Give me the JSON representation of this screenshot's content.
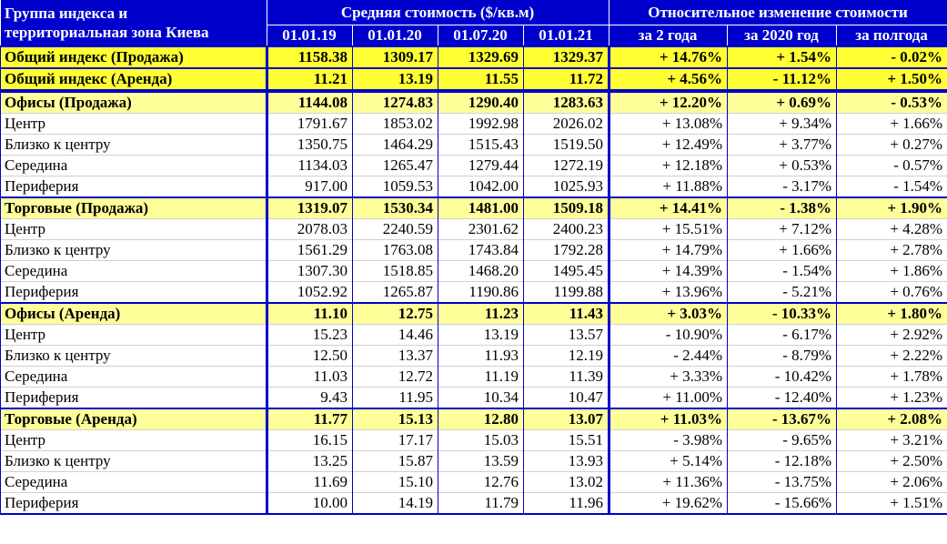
{
  "header": {
    "group_label_line1": "Группа индекса и",
    "group_label_line2": "территориальная зона Киева",
    "avg_cost_label": "Средняя стоимость ($/кв.м)",
    "rel_change_label": "Относительное изменение стоимости",
    "dates": [
      "01.01.19",
      "01.01.20",
      "01.07.20",
      "01.01.21"
    ],
    "periods": [
      "за 2 года",
      "за 2020 год",
      "за полгода"
    ]
  },
  "rows": [
    {
      "type": "main",
      "label": "Общий индекс (Продажа)",
      "v": [
        "1158.38",
        "1309.17",
        "1329.69",
        "1329.37"
      ],
      "c": [
        "+ 14.76%",
        "+ 1.54%",
        "- 0.02%"
      ]
    },
    {
      "type": "main",
      "label": "Общий индекс (Аренда)",
      "v": [
        "11.21",
        "13.19",
        "11.55",
        "11.72"
      ],
      "c": [
        "+ 4.56%",
        "- 11.12%",
        "+ 1.50%"
      ]
    },
    {
      "type": "sect",
      "label": "Офисы (Продажа)",
      "v": [
        "1144.08",
        "1274.83",
        "1290.40",
        "1283.63"
      ],
      "c": [
        "+ 12.20%",
        "+ 0.69%",
        "- 0.53%"
      ]
    },
    {
      "type": "data",
      "label": "Центр",
      "v": [
        "1791.67",
        "1853.02",
        "1992.98",
        "2026.02"
      ],
      "c": [
        "+ 13.08%",
        "+ 9.34%",
        "+ 1.66%"
      ]
    },
    {
      "type": "data",
      "label": "Близко к центру",
      "v": [
        "1350.75",
        "1464.29",
        "1515.43",
        "1519.50"
      ],
      "c": [
        "+ 12.49%",
        "+ 3.77%",
        "+ 0.27%"
      ]
    },
    {
      "type": "data",
      "label": "Середина",
      "v": [
        "1134.03",
        "1265.47",
        "1279.44",
        "1272.19"
      ],
      "c": [
        "+ 12.18%",
        "+ 0.53%",
        "- 0.57%"
      ]
    },
    {
      "type": "data",
      "label": "Периферия",
      "v": [
        "917.00",
        "1059.53",
        "1042.00",
        "1025.93"
      ],
      "c": [
        "+ 11.88%",
        "- 3.17%",
        "- 1.54%"
      ]
    },
    {
      "type": "sect",
      "label": "Торговые (Продажа)",
      "v": [
        "1319.07",
        "1530.34",
        "1481.00",
        "1509.18"
      ],
      "c": [
        "+ 14.41%",
        "- 1.38%",
        "+ 1.90%"
      ]
    },
    {
      "type": "data",
      "label": "Центр",
      "v": [
        "2078.03",
        "2240.59",
        "2301.62",
        "2400.23"
      ],
      "c": [
        "+ 15.51%",
        "+ 7.12%",
        "+ 4.28%"
      ]
    },
    {
      "type": "data",
      "label": "Близко к центру",
      "v": [
        "1561.29",
        "1763.08",
        "1743.84",
        "1792.28"
      ],
      "c": [
        "+ 14.79%",
        "+ 1.66%",
        "+ 2.78%"
      ]
    },
    {
      "type": "data",
      "label": "Середина",
      "v": [
        "1307.30",
        "1518.85",
        "1468.20",
        "1495.45"
      ],
      "c": [
        "+ 14.39%",
        "- 1.54%",
        "+ 1.86%"
      ]
    },
    {
      "type": "data",
      "label": "Периферия",
      "v": [
        "1052.92",
        "1265.87",
        "1190.86",
        "1199.88"
      ],
      "c": [
        "+ 13.96%",
        "- 5.21%",
        "+ 0.76%"
      ]
    },
    {
      "type": "sect",
      "label": "Офисы (Аренда)",
      "v": [
        "11.10",
        "12.75",
        "11.23",
        "11.43"
      ],
      "c": [
        "+ 3.03%",
        "- 10.33%",
        "+ 1.80%"
      ]
    },
    {
      "type": "data",
      "label": "Центр",
      "v": [
        "15.23",
        "14.46",
        "13.19",
        "13.57"
      ],
      "c": [
        "- 10.90%",
        "- 6.17%",
        "+ 2.92%"
      ]
    },
    {
      "type": "data",
      "label": "Близко к центру",
      "v": [
        "12.50",
        "13.37",
        "11.93",
        "12.19"
      ],
      "c": [
        "- 2.44%",
        "- 8.79%",
        "+ 2.22%"
      ]
    },
    {
      "type": "data",
      "label": "Середина",
      "v": [
        "11.03",
        "12.72",
        "11.19",
        "11.39"
      ],
      "c": [
        "+ 3.33%",
        "- 10.42%",
        "+ 1.78%"
      ]
    },
    {
      "type": "data",
      "label": "Периферия",
      "v": [
        "9.43",
        "11.95",
        "10.34",
        "10.47"
      ],
      "c": [
        "+ 11.00%",
        "- 12.40%",
        "+ 1.23%"
      ]
    },
    {
      "type": "sect",
      "label": "Торговые (Аренда)",
      "v": [
        "11.77",
        "15.13",
        "12.80",
        "13.07"
      ],
      "c": [
        "+ 11.03%",
        "- 13.67%",
        "+ 2.08%"
      ]
    },
    {
      "type": "data",
      "label": "Центр",
      "v": [
        "16.15",
        "17.17",
        "15.03",
        "15.51"
      ],
      "c": [
        "- 3.98%",
        "- 9.65%",
        "+ 3.21%"
      ]
    },
    {
      "type": "data",
      "label": "Близко к центру",
      "v": [
        "13.25",
        "15.87",
        "13.59",
        "13.93"
      ],
      "c": [
        "+ 5.14%",
        "- 12.18%",
        "+ 2.50%"
      ]
    },
    {
      "type": "data",
      "label": "Середина",
      "v": [
        "11.69",
        "15.10",
        "12.76",
        "13.02"
      ],
      "c": [
        "+ 11.36%",
        "- 13.75%",
        "+ 2.06%"
      ]
    },
    {
      "type": "data",
      "label": "Периферия",
      "v": [
        "10.00",
        "14.19",
        "11.79",
        "11.96"
      ],
      "c": [
        "+ 19.62%",
        "- 15.66%",
        "+ 1.51%"
      ]
    }
  ]
}
